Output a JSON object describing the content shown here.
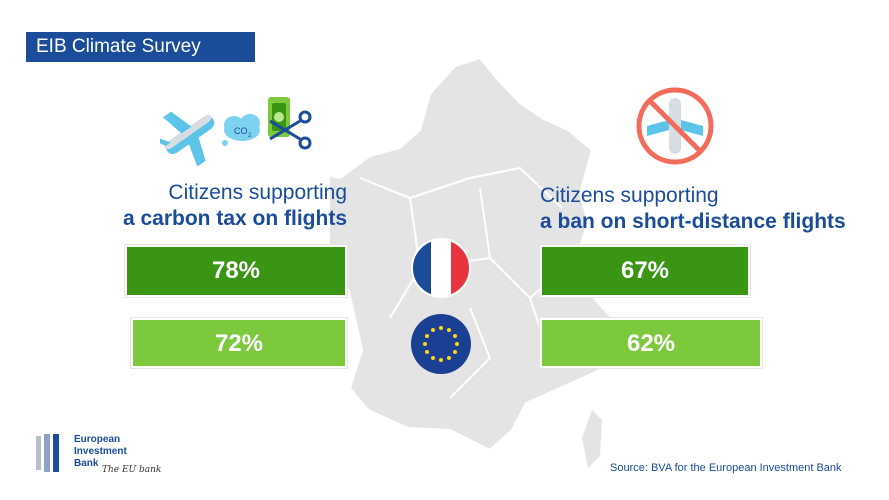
{
  "header": {
    "title": "EIB Climate Survey"
  },
  "left_panel": {
    "heading_line1": "Citizens supporting",
    "heading_line2": "a carbon tax on flights",
    "france_value": "78%",
    "eu_value": "72%"
  },
  "right_panel": {
    "heading_line1": "Citizens supporting",
    "heading_line2": "a ban on short-distance flights",
    "france_value": "67%",
    "eu_value": "62%"
  },
  "icons": {
    "left": [
      "airplane-icon",
      "co2-cloud-icon",
      "banknote-icon",
      "scissors-icon"
    ],
    "right": "no-flights-icon",
    "co2_label": "CO",
    "co2_sub": "2"
  },
  "footer": {
    "logo_line1": "European",
    "logo_line2": "Investment",
    "logo_line3": "Bank",
    "tagline": "The EU bank",
    "source": "Source: BVA for the European Investment Bank"
  },
  "colors": {
    "brand_blue": "#1b4c99",
    "dark_green": "#3a9514",
    "light_green": "#7cc93d",
    "map_grey": "#e4e4e4"
  }
}
